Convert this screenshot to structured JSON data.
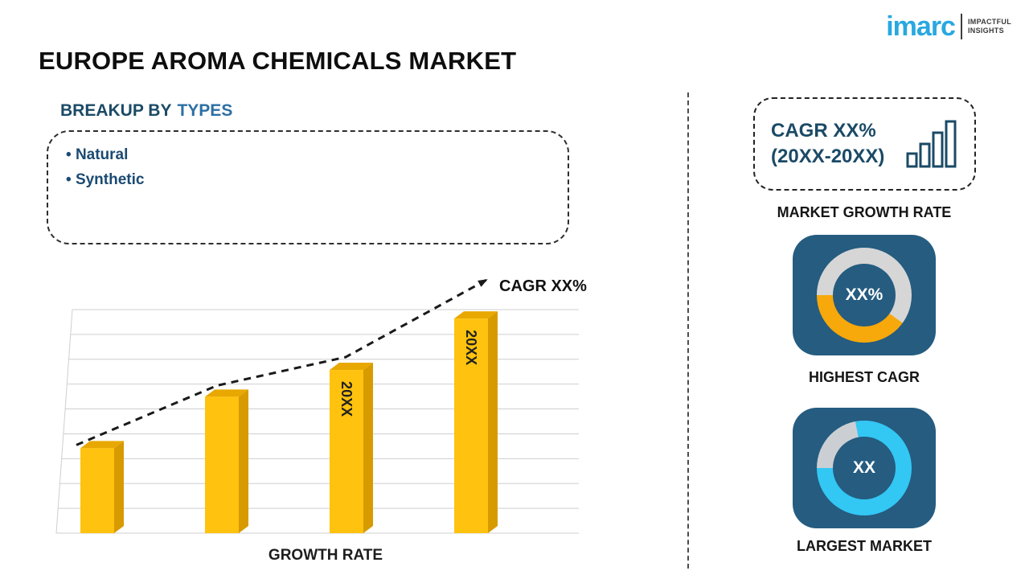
{
  "brand": {
    "logo_text": "imarc",
    "tagline_line1": "IMPACTFUL",
    "tagline_line2": "INSIGHTS"
  },
  "page_title": "EUROPE AROMA CHEMICALS MARKET",
  "breakup": {
    "heading_prefix": "BREAKUP BY",
    "heading_highlight": "TYPES",
    "items": [
      "Natural",
      "Synthetic"
    ]
  },
  "chart_data": {
    "type": "bar",
    "bar_labels": [
      "",
      "",
      "20XX",
      "20XX"
    ],
    "values": [
      38,
      61,
      73,
      96
    ],
    "ylim": [
      0,
      100
    ],
    "grid": true,
    "trend_annotation": "CAGR XX%",
    "xlabel": "GROWTH RATE",
    "bar_color": "#FFC20E",
    "bar_top_color": "#E8A800",
    "bar_side_color": "#D79B00",
    "trend_color": "#1a1a1a"
  },
  "right_panel": {
    "cagr_line1": "CAGR XX%",
    "cagr_line2": "(20XX-20XX)",
    "growth_rate_label": "MARKET GROWTH RATE",
    "highest_cagr": {
      "value": "XX%",
      "label": "HIGHEST CAGR",
      "percent": 40,
      "segment_color": "#F7A80B",
      "track_color": "#D6D6D6"
    },
    "largest_market": {
      "value": "XX",
      "label": "LARGEST MARKET",
      "percent": 78,
      "segment_color": "#33C7F4",
      "track_color": "#CBCFD3"
    }
  }
}
